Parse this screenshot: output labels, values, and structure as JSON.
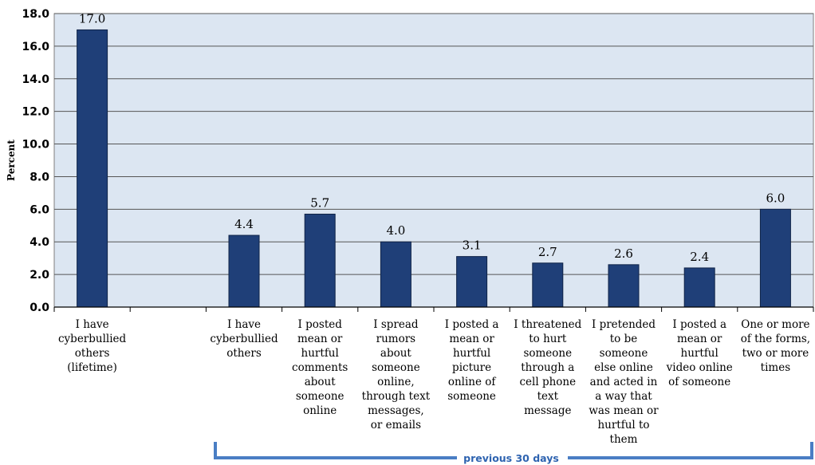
{
  "chart_data": {
    "type": "bar",
    "ylabel": "Percent",
    "ylim": [
      0,
      18
    ],
    "ytick_labels": [
      "0.0",
      "2.0",
      "4.0",
      "6.0",
      "8.0",
      "10.0",
      "12.0",
      "14.0",
      "16.0",
      "18.0"
    ],
    "categories": [
      "I have cyberbullied others (lifetime)",
      "",
      "I have cyberbullied others",
      "I posted mean or hurtful comments about someone online",
      "I spread rumors about someone online, through text messages, or emails",
      "I posted a mean or hurtful picture online of someone",
      "I threatened to hurt someone through a cell phone text message",
      "I pretended to be someone else online and acted in a way that was mean or hurtful to them",
      "I posted a mean or hurtful video online of someone",
      "One or more of the forms, two or more times"
    ],
    "category_lines": [
      [
        "I have",
        "cyberbullied",
        "others",
        "(lifetime)"
      ],
      [],
      [
        "I have",
        "cyberbullied",
        "others"
      ],
      [
        "I posted",
        "mean or",
        "hurtful",
        "comments",
        "about",
        "someone",
        "online"
      ],
      [
        "I spread",
        "rumors",
        "about",
        "someone",
        "online,",
        "through text",
        "messages,",
        "or emails"
      ],
      [
        "I posted a",
        "mean or",
        "hurtful",
        "picture",
        "online of",
        "someone"
      ],
      [
        "I threatened",
        "to hurt",
        "someone",
        "through a",
        "cell phone",
        "text",
        "message"
      ],
      [
        "I pretended",
        "to be",
        "someone",
        "else online",
        "and acted in",
        "a way that",
        "was mean or",
        "hurtful to",
        "them"
      ],
      [
        "I posted a",
        "mean or",
        "hurtful",
        "video online",
        "of someone"
      ],
      [
        "One or more",
        "of the forms,",
        "two or more",
        "times"
      ]
    ],
    "values": [
      17.0,
      null,
      4.4,
      5.7,
      4.0,
      3.1,
      2.7,
      2.6,
      2.4,
      6.0
    ],
    "value_labels": [
      "17.0",
      "",
      "4.4",
      "5.7",
      "4.0",
      "3.1",
      "2.7",
      "2.6",
      "2.4",
      "6.0"
    ],
    "grid": true,
    "bracket_label": "previous 30 days",
    "colors": {
      "bar": "#1f3f78",
      "plot_background": "#dce6f2",
      "gridline": "#555555",
      "bracket": "#4a7ec4",
      "bracket_text": "#2e63b0"
    }
  }
}
